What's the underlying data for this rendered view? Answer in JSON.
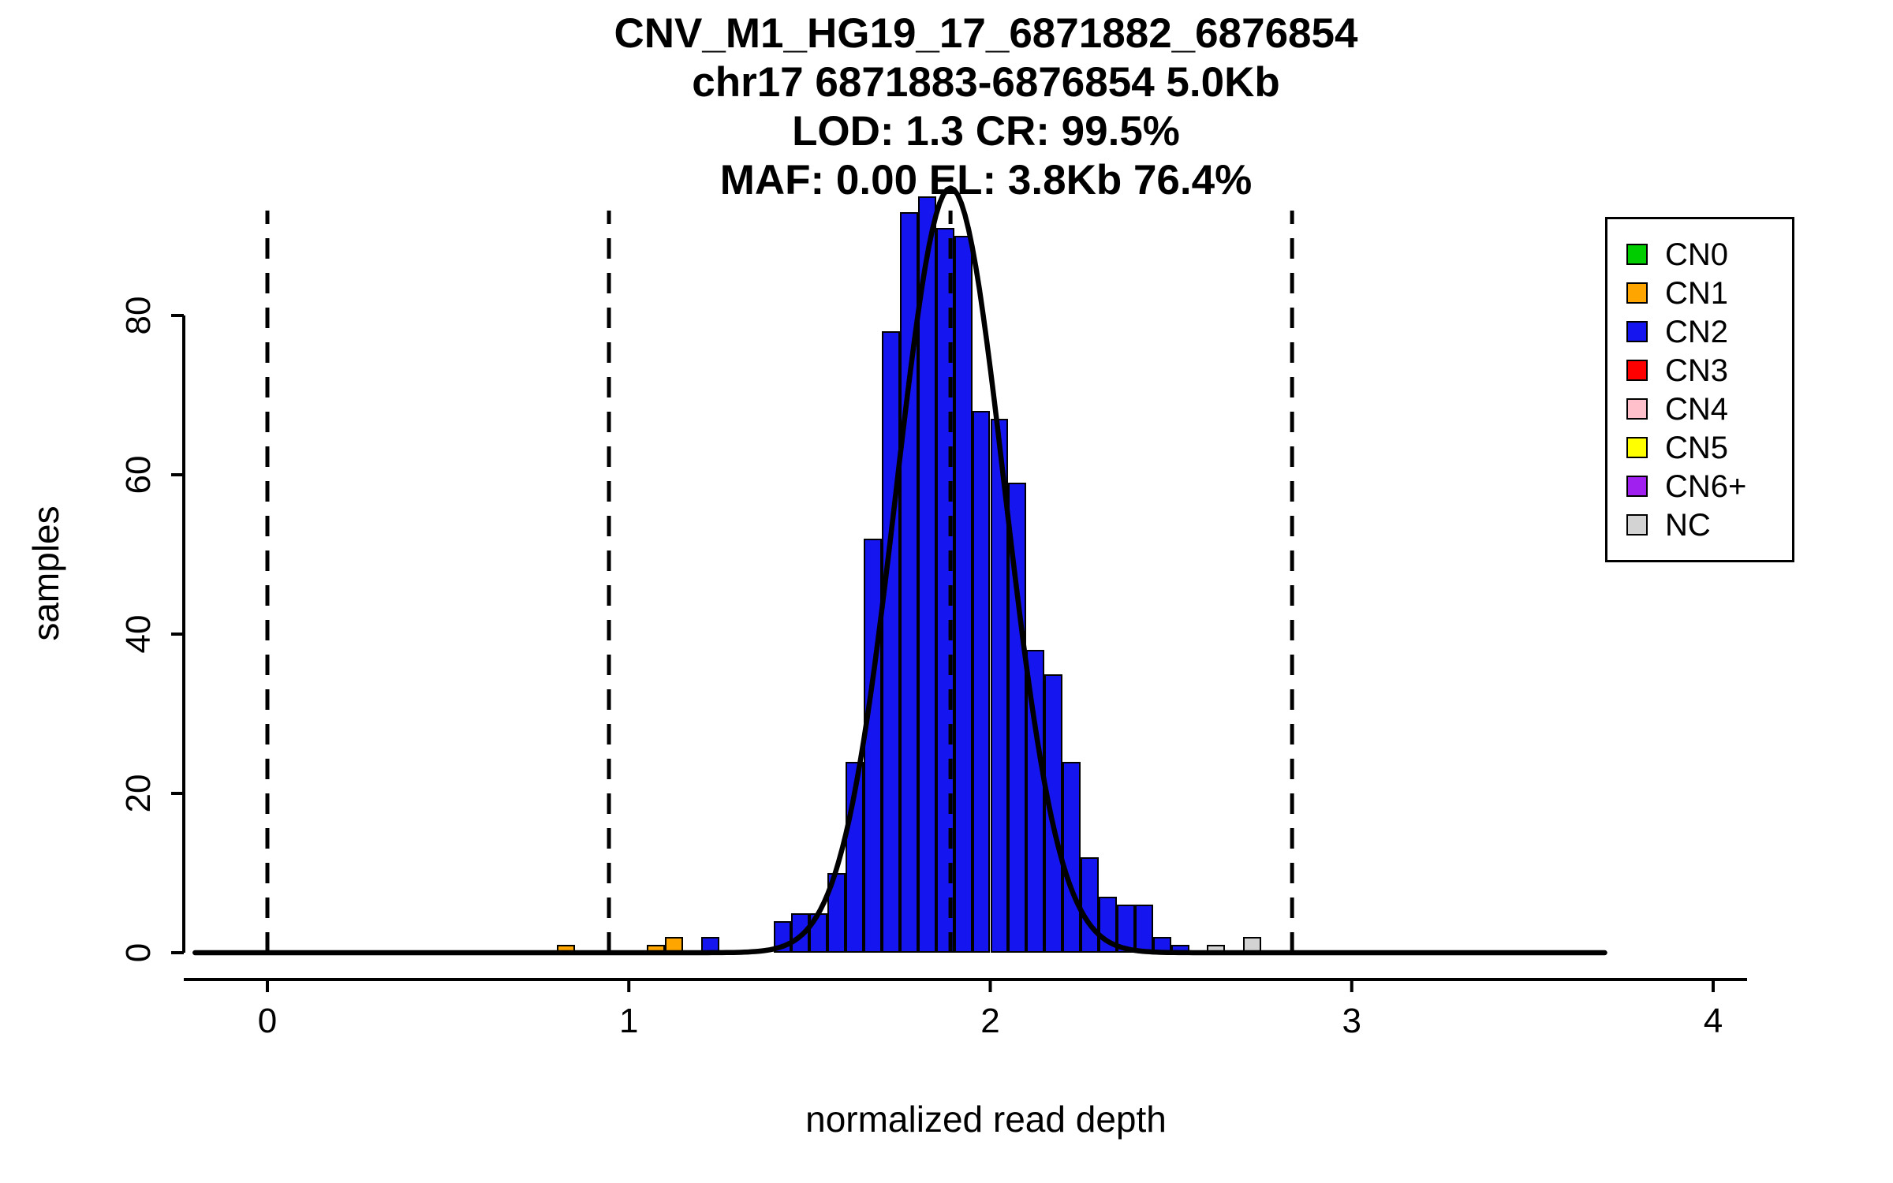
{
  "title_lines": [
    "CNV_M1_HG19_17_6871882_6876854",
    "chr17 6871883-6876854 5.0Kb",
    "LOD: 1.3 CR: 99.5%",
    "MAF: 0.00 EL: 3.8Kb 76.4%"
  ],
  "chart_data": {
    "type": "bar",
    "title": "CNV_M1_HG19_17_6871882_6876854",
    "subtitle_lines": [
      "chr17 6871883-6876854 5.0Kb",
      "LOD: 1.3 CR: 99.5%",
      "MAF: 0.00 EL: 3.8Kb 76.4%"
    ],
    "xlabel": "normalized read depth",
    "ylabel": "samples",
    "x_ticks": [
      0,
      1,
      2,
      3,
      4
    ],
    "y_ticks": [
      0,
      20,
      40,
      60,
      80
    ],
    "xlim": [
      -0.25,
      4.3
    ],
    "ylim": [
      0,
      96
    ],
    "grid": false,
    "legend_position": "top-right",
    "bin_width": 0.05,
    "bars": [
      {
        "x": 0.8,
        "h": 1,
        "cn": "CN1"
      },
      {
        "x": 1.05,
        "h": 1,
        "cn": "CN1"
      },
      {
        "x": 1.1,
        "h": 2,
        "cn": "CN1"
      },
      {
        "x": 1.2,
        "h": 2,
        "cn": "CN2"
      },
      {
        "x": 1.4,
        "h": 4,
        "cn": "CN2"
      },
      {
        "x": 1.45,
        "h": 5,
        "cn": "CN2"
      },
      {
        "x": 1.5,
        "h": 5,
        "cn": "CN2"
      },
      {
        "x": 1.55,
        "h": 10,
        "cn": "CN2"
      },
      {
        "x": 1.6,
        "h": 24,
        "cn": "CN2"
      },
      {
        "x": 1.65,
        "h": 52,
        "cn": "CN2"
      },
      {
        "x": 1.7,
        "h": 78,
        "cn": "CN2"
      },
      {
        "x": 1.75,
        "h": 93,
        "cn": "CN2"
      },
      {
        "x": 1.8,
        "h": 95,
        "cn": "CN2"
      },
      {
        "x": 1.85,
        "h": 91,
        "cn": "CN2"
      },
      {
        "x": 1.9,
        "h": 90,
        "cn": "CN2"
      },
      {
        "x": 1.95,
        "h": 68,
        "cn": "CN2"
      },
      {
        "x": 2.0,
        "h": 67,
        "cn": "CN2"
      },
      {
        "x": 2.05,
        "h": 59,
        "cn": "CN2"
      },
      {
        "x": 2.1,
        "h": 38,
        "cn": "CN2"
      },
      {
        "x": 2.15,
        "h": 35,
        "cn": "CN2"
      },
      {
        "x": 2.2,
        "h": 24,
        "cn": "CN2"
      },
      {
        "x": 2.25,
        "h": 12,
        "cn": "CN2"
      },
      {
        "x": 2.3,
        "h": 7,
        "cn": "CN2"
      },
      {
        "x": 2.35,
        "h": 6,
        "cn": "CN2"
      },
      {
        "x": 2.4,
        "h": 6,
        "cn": "CN2"
      },
      {
        "x": 2.45,
        "h": 2,
        "cn": "CN2"
      },
      {
        "x": 2.5,
        "h": 1,
        "cn": "CN2"
      },
      {
        "x": 2.6,
        "h": 1,
        "cn": "NC"
      },
      {
        "x": 2.7,
        "h": 2,
        "cn": "NC"
      }
    ],
    "dashed_lines_x": [
      0,
      0.945,
      1.89,
      2.835
    ],
    "density_curve": {
      "mean": 1.89,
      "sd": 0.15,
      "peak": 96,
      "x_start": -0.2,
      "x_end": 3.7
    },
    "legend": [
      {
        "label": "CN0",
        "color": "#00CD00"
      },
      {
        "label": "CN1",
        "color": "#FFA500"
      },
      {
        "label": "CN2",
        "color": "#1515EF"
      },
      {
        "label": "CN3",
        "color": "#FF0000"
      },
      {
        "label": "CN4",
        "color": "#FFC0CB"
      },
      {
        "label": "CN5",
        "color": "#FFFF00"
      },
      {
        "label": "CN6+",
        "color": "#A020F0"
      },
      {
        "label": "NC",
        "color": "#D3D3D3"
      }
    ],
    "axis_color": "#000000",
    "curve_color": "#000000"
  }
}
